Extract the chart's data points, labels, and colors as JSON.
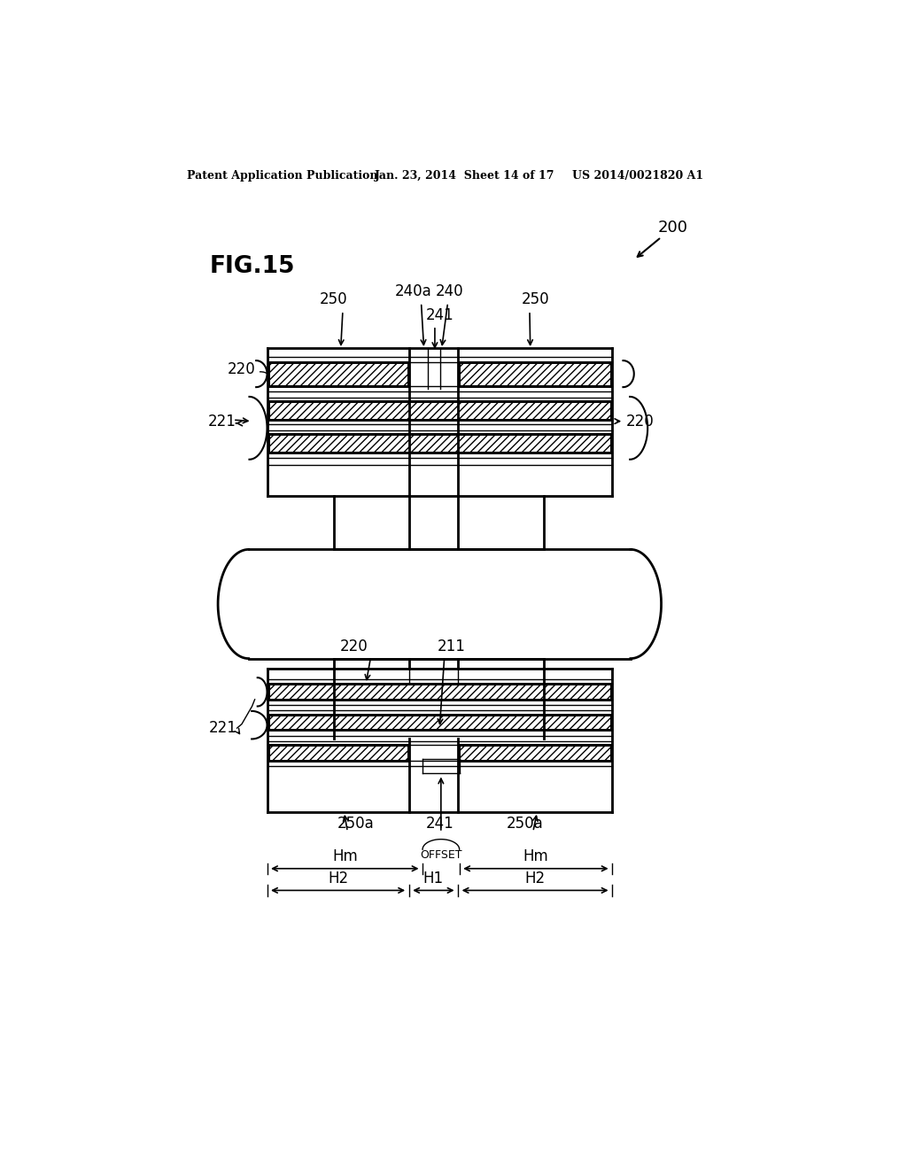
{
  "bg_color": "#ffffff",
  "header_text": "Patent Application Publication",
  "header_date": "Jan. 23, 2014  Sheet 14 of 17",
  "header_patent": "US 2014/0021820 A1",
  "fig_label": "FIG.15",
  "ref_200": "200",
  "label_250": "250",
  "label_240a": "240a",
  "label_240": "240",
  "label_241": "241",
  "label_220": "220",
  "label_221": "221",
  "label_211": "211",
  "label_250a": "250a",
  "label_Hm": "Hm",
  "label_OFFSET": "OFFSET",
  "label_H2": "H2",
  "label_H1": "H1"
}
